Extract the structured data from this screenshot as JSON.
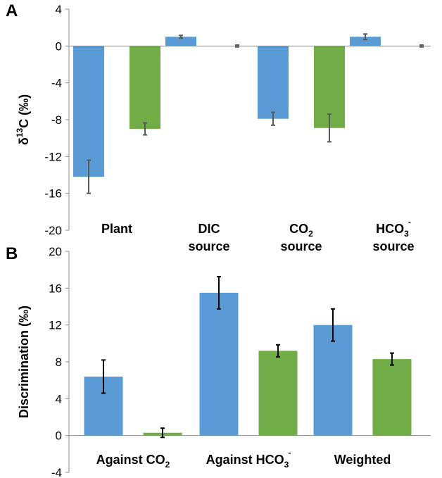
{
  "chart_data": [
    {
      "panel": "A",
      "type": "bar",
      "ylabel": {
        "main": "δ",
        "sup": "13",
        "rest": "C (‰)"
      },
      "ylim": [
        -20,
        4
      ],
      "yticks": [
        "4",
        "0",
        "-4",
        "-8",
        "-12",
        "-16",
        "-20"
      ],
      "categories": [
        {
          "lines": [
            {
              "text": "Plant"
            }
          ]
        },
        {
          "lines": [
            {
              "text": "DIC"
            },
            {
              "text": "source"
            }
          ]
        },
        {
          "lines": [
            {
              "text": "CO",
              "sub": "2"
            },
            {
              "text": "source"
            }
          ]
        },
        {
          "lines": [
            {
              "text": "HCO",
              "sub": "3",
              "sup": "-"
            },
            {
              "text": "source"
            }
          ]
        }
      ],
      "series": [
        {
          "name": "series-blue",
          "color": "#5b9bd5",
          "values": [
            -14.2,
            1.0,
            -7.9,
            1.0
          ],
          "errors": [
            1.8,
            0.15,
            0.7,
            0.3
          ]
        },
        {
          "name": "series-green",
          "color": "#70ad47",
          "values": [
            -9.0,
            0,
            -8.9,
            0
          ],
          "errors": [
            0.65,
            0.1,
            1.5,
            0.1
          ]
        }
      ],
      "errorbar_color": "#595959"
    },
    {
      "panel": "B",
      "type": "bar",
      "ylabel": {
        "main": "Discrimination (‰)"
      },
      "ylim": [
        -4,
        20
      ],
      "yticks": [
        "20",
        "16",
        "12",
        "8",
        "4",
        "0",
        "-4"
      ],
      "categories": [
        {
          "lines": [
            {
              "text": "Against CO",
              "sub": "2"
            }
          ]
        },
        {
          "lines": [
            {
              "text": "Against HCO",
              "sub": "3",
              "sup": "-"
            }
          ]
        },
        {
          "lines": [
            {
              "text": "Weighted"
            }
          ]
        }
      ],
      "series": [
        {
          "name": "series-blue",
          "color": "#5b9bd5",
          "values": [
            6.4,
            15.5,
            12.0
          ],
          "errors": [
            1.8,
            1.75,
            1.75
          ]
        },
        {
          "name": "series-green",
          "color": "#70ad47",
          "values": [
            0.3,
            9.2,
            8.3
          ],
          "errors": [
            0.5,
            0.65,
            0.65
          ]
        }
      ],
      "errorbar_color": "#000000"
    }
  ]
}
